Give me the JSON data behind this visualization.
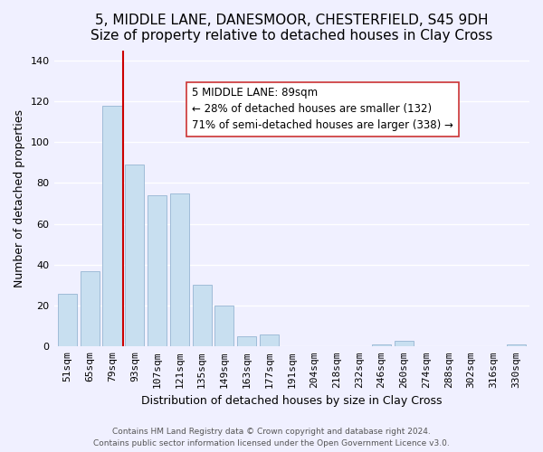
{
  "title": "5, MIDDLE LANE, DANESMOOR, CHESTERFIELD, S45 9DH",
  "subtitle": "Size of property relative to detached houses in Clay Cross",
  "xlabel": "Distribution of detached houses by size in Clay Cross",
  "ylabel": "Number of detached properties",
  "bar_color": "#c8dff0",
  "bar_edge_color": "#a0bcd8",
  "categories": [
    "51sqm",
    "65sqm",
    "79sqm",
    "93sqm",
    "107sqm",
    "121sqm",
    "135sqm",
    "149sqm",
    "163sqm",
    "177sqm",
    "191sqm",
    "204sqm",
    "218sqm",
    "232sqm",
    "246sqm",
    "260sqm",
    "274sqm",
    "288sqm",
    "302sqm",
    "316sqm",
    "330sqm"
  ],
  "values": [
    26,
    37,
    118,
    89,
    74,
    75,
    30,
    20,
    5,
    6,
    0,
    0,
    0,
    0,
    1,
    3,
    0,
    0,
    0,
    0,
    1
  ],
  "ylim": [
    0,
    145
  ],
  "yticks": [
    0,
    20,
    40,
    60,
    80,
    100,
    120,
    140
  ],
  "property_label": "5 MIDDLE LANE: 89sqm",
  "annotation_line1": "← 28% of detached houses are smaller (132)",
  "annotation_line2": "71% of semi-detached houses are larger (338) →",
  "vline_color": "#cc0000",
  "footer_line1": "Contains HM Land Registry data © Crown copyright and database right 2024.",
  "footer_line2": "Contains public sector information licensed under the Open Government Licence v3.0.",
  "background_color": "#f0f0ff",
  "grid_color": "#ffffff",
  "title_fontsize": 11,
  "axis_label_fontsize": 9,
  "tick_fontsize": 8
}
